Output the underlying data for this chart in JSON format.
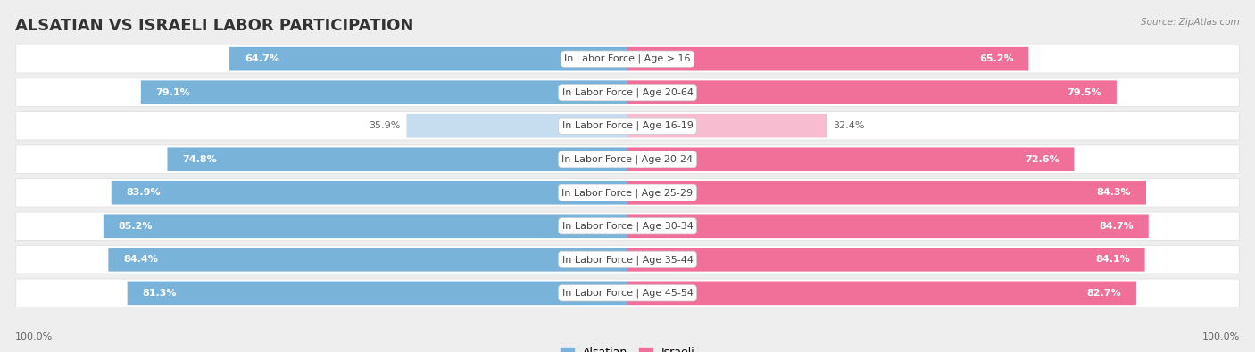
{
  "title": "ALSATIAN VS ISRAELI LABOR PARTICIPATION",
  "source": "Source: ZipAtlas.com",
  "categories": [
    "In Labor Force | Age > 16",
    "In Labor Force | Age 20-64",
    "In Labor Force | Age 16-19",
    "In Labor Force | Age 20-24",
    "In Labor Force | Age 25-29",
    "In Labor Force | Age 30-34",
    "In Labor Force | Age 35-44",
    "In Labor Force | Age 45-54"
  ],
  "alsatian_values": [
    64.7,
    79.1,
    35.9,
    74.8,
    83.9,
    85.2,
    84.4,
    81.3
  ],
  "israeli_values": [
    65.2,
    79.5,
    32.4,
    72.6,
    84.3,
    84.7,
    84.1,
    82.7
  ],
  "alsatian_color": "#7ab3d9",
  "alsatian_light_color": "#c5ddef",
  "israeli_color": "#f0709a",
  "israeli_light_color": "#f8bcd0",
  "background_color": "#eeeeee",
  "row_bg_color": "#ffffff",
  "bar_height": 0.68,
  "max_value": 100.0,
  "title_fontsize": 13,
  "label_fontsize": 8,
  "value_fontsize": 8,
  "legend_fontsize": 9,
  "bottom_label": "100.0%"
}
